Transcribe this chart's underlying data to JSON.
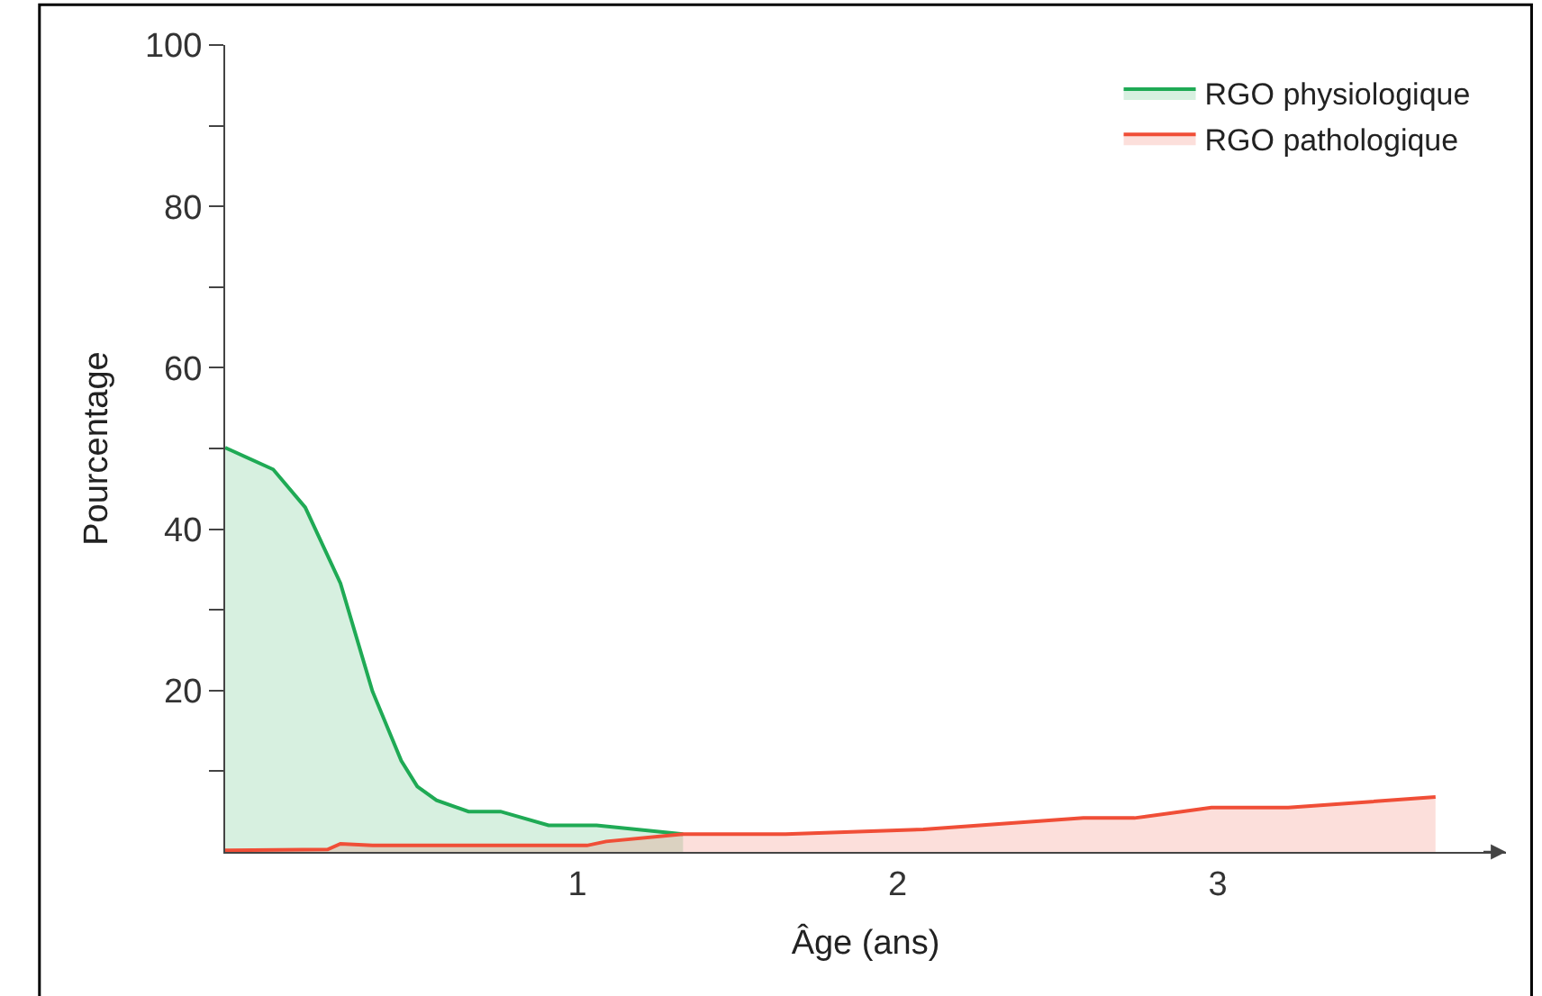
{
  "chart_data": {
    "type": "area",
    "xlabel": "Âge (ans)",
    "ylabel": "Pourcentage",
    "xlim": [
      -0.1,
      3.9
    ],
    "xticks": [
      1,
      2,
      3
    ],
    "ylim": [
      0,
      100
    ],
    "yticks": [
      {
        "value": 10,
        "label": null
      },
      20,
      {
        "value": 30,
        "label": null
      },
      40,
      {
        "value": 50,
        "label": null
      },
      60,
      {
        "value": 70,
        "label": null
      },
      80,
      {
        "value": 90,
        "label": null
      },
      100
    ],
    "legend": "top right",
    "series": [
      {
        "name": "RGO physiologique",
        "color": "#1faa55",
        "x": [
          -0.1,
          0.05,
          0.15,
          0.26,
          0.36,
          0.45,
          0.5,
          0.56,
          0.66,
          0.76,
          0.91,
          1.06,
          1.33
        ],
        "values": [
          50.1,
          47.4,
          42.7,
          33.3,
          19.9,
          11.3,
          8.1,
          6.4,
          5.0,
          5.0,
          3.3,
          3.3,
          2.2
        ]
      },
      {
        "name": "RGO pathologique",
        "color": "#f04e37",
        "x": [
          -0.1,
          0.22,
          0.26,
          0.36,
          1.03,
          1.09,
          1.33,
          1.65,
          2.08,
          2.58,
          2.74,
          2.98,
          3.22,
          3.68
        ],
        "values": [
          0.2,
          0.3,
          1.0,
          0.8,
          0.8,
          1.3,
          2.2,
          2.2,
          2.8,
          4.2,
          4.2,
          5.5,
          5.5,
          6.8
        ]
      }
    ]
  }
}
